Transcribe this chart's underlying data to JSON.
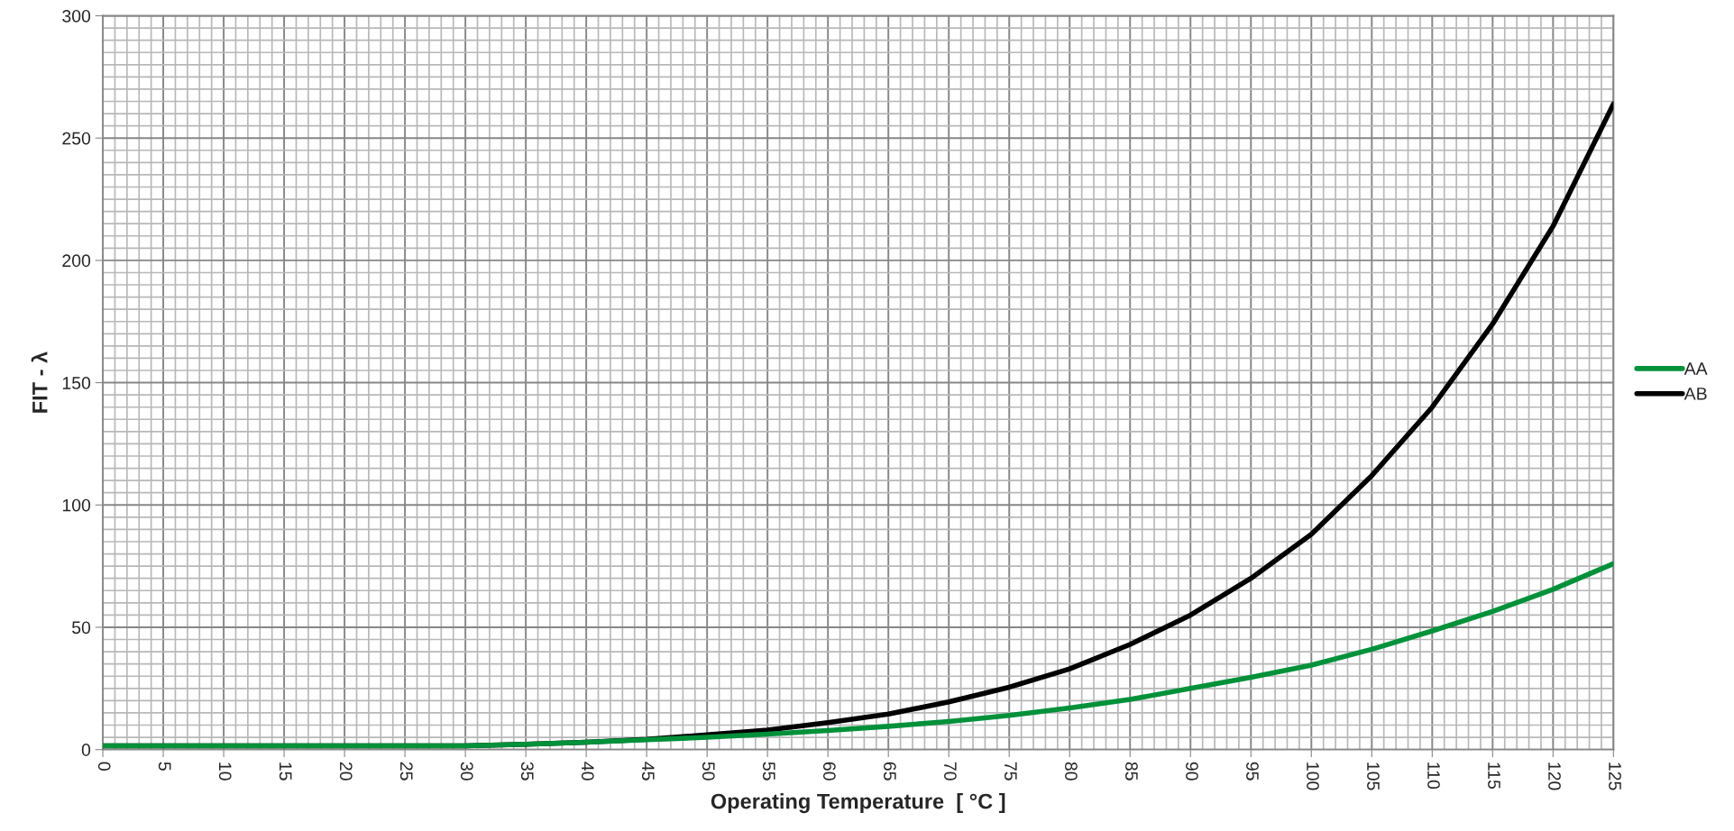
{
  "chart_data": {
    "type": "line",
    "xlabel": "Operating Temperature  [ °C ]",
    "ylabel": "FIT - λ",
    "x": [
      0,
      5,
      10,
      15,
      20,
      25,
      30,
      35,
      40,
      45,
      50,
      55,
      60,
      65,
      70,
      75,
      80,
      85,
      90,
      95,
      100,
      105,
      110,
      115,
      120,
      125
    ],
    "series": [
      {
        "name": "AA",
        "color": "#00913a",
        "values": [
          1.5,
          1.5,
          1.5,
          1.5,
          1.5,
          1.5,
          1.5,
          2.2,
          3,
          4,
          5,
          6.3,
          7.8,
          9.5,
          11.5,
          14,
          17,
          20.5,
          25,
          29.5,
          34.5,
          41,
          48.5,
          56.5,
          65.5,
          76
        ]
      },
      {
        "name": "AB",
        "color": "#000000",
        "values": [
          1.5,
          1.5,
          1.5,
          1.5,
          1.5,
          1.5,
          1.5,
          2.2,
          3,
          4.2,
          6,
          8,
          11,
          14.5,
          19.5,
          25.5,
          33,
          43,
          55,
          70,
          88,
          112,
          140,
          174,
          214,
          264
        ]
      }
    ],
    "xlim": [
      0,
      125
    ],
    "xticks": [
      0,
      5,
      10,
      15,
      20,
      25,
      30,
      35,
      40,
      45,
      50,
      55,
      60,
      65,
      70,
      75,
      80,
      85,
      90,
      95,
      100,
      105,
      110,
      115,
      120,
      125
    ],
    "ylim": [
      0,
      300
    ],
    "yticks": [
      0,
      50,
      100,
      150,
      200,
      250,
      300
    ],
    "grid": true,
    "legend": "right",
    "marker": "none",
    "line_style": "solid"
  }
}
